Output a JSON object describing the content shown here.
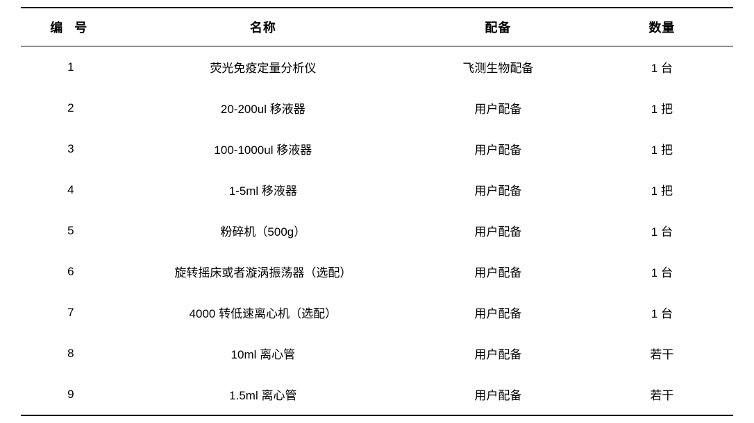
{
  "table": {
    "type": "table",
    "background_color": "#ffffff",
    "border_color": "#000000",
    "header_fontsize": 18,
    "header_fontweight": 700,
    "cell_fontsize": 17,
    "cell_fontweight": 400,
    "text_color": "#000000",
    "top_border_width": 2,
    "header_bottom_border_width": 1.5,
    "bottom_border_width": 2,
    "row_padding_vertical": 17,
    "columns": [
      {
        "key": "id",
        "label": "编 号",
        "width_pct": 14,
        "align": "center"
      },
      {
        "key": "name",
        "label": "名称",
        "width_pct": 40,
        "align": "center"
      },
      {
        "key": "equip",
        "label": "配备",
        "width_pct": 26,
        "align": "center"
      },
      {
        "key": "qty",
        "label": "数量",
        "width_pct": 20,
        "align": "center"
      }
    ],
    "rows": [
      {
        "id": "1",
        "name": "荧光免疫定量分析仪",
        "equip": "飞测生物配备",
        "qty": "1 台"
      },
      {
        "id": "2",
        "name": "20-200ul 移液器",
        "equip": "用户配备",
        "qty": "1 把"
      },
      {
        "id": "3",
        "name": "100-1000ul 移液器",
        "equip": "用户配备",
        "qty": "1 把"
      },
      {
        "id": "4",
        "name": "1-5ml 移液器",
        "equip": "用户配备",
        "qty": "1 把"
      },
      {
        "id": "5",
        "name": "粉碎机（500g）",
        "equip": "用户配备",
        "qty": "1 台"
      },
      {
        "id": "6",
        "name": "旋转摇床或者漩涡振荡器（选配）",
        "equip": "用户配备",
        "qty": "1 台"
      },
      {
        "id": "7",
        "name": "4000 转低速离心机（选配）",
        "equip": "用户配备",
        "qty": "1 台"
      },
      {
        "id": "8",
        "name": "10ml 离心管",
        "equip": "用户配备",
        "qty": "若干"
      },
      {
        "id": "9",
        "name": "1.5ml 离心管",
        "equip": "用户配备",
        "qty": "若干"
      }
    ]
  }
}
